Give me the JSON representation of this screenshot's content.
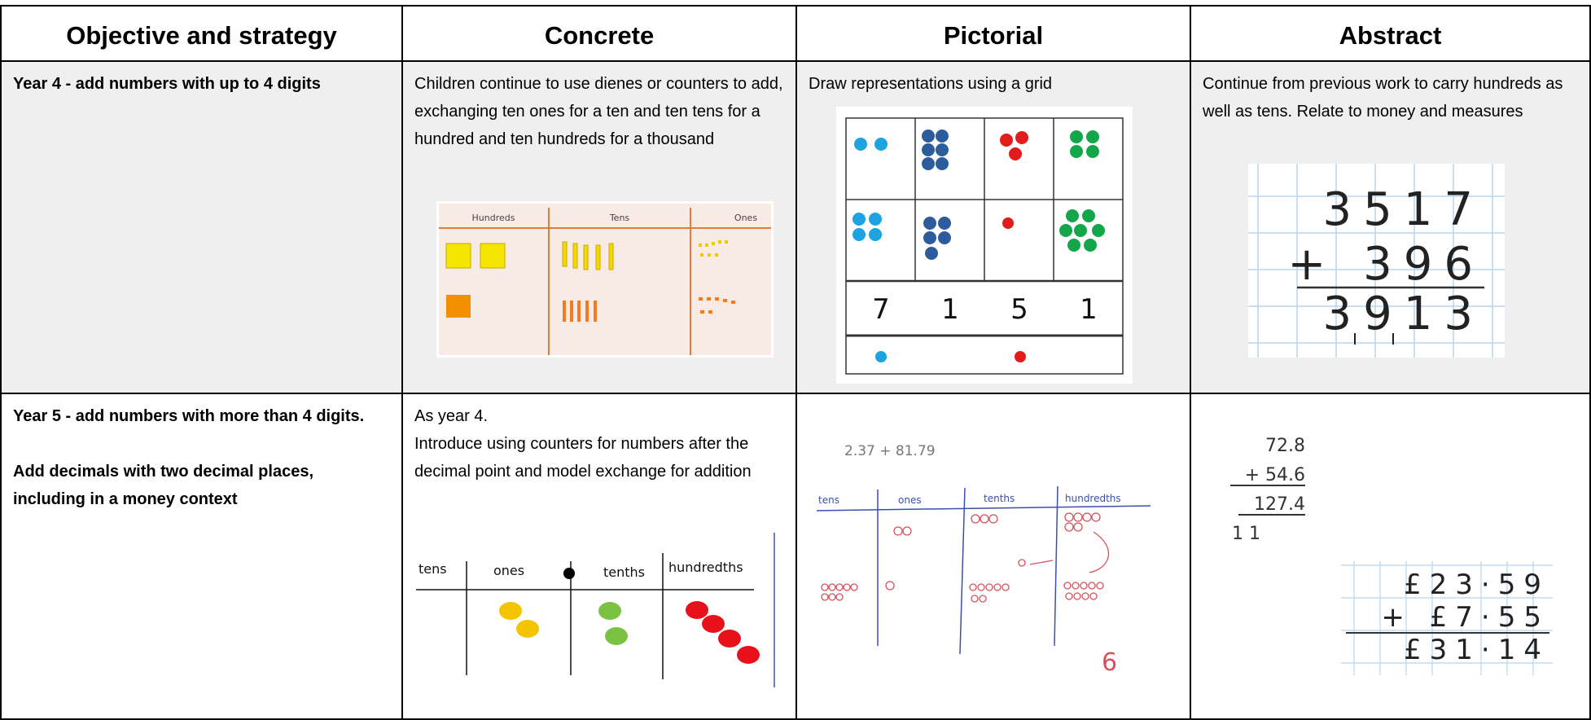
{
  "table": {
    "header": [
      "Objective and strategy",
      "Concrete",
      "Pictorial",
      "Abstract"
    ],
    "rows": [
      [
        {
          "paragraphs": [
            "Year 4 - add numbers with up to 4 digits"
          ]
        },
        {
          "paragraphs": [
            "Children continue to use dienes or counters to add, exchanging ten ones for a ten and ten tens for a hundred and ten hundreds for a thousand"
          ],
          "figure": {
            "columns": [
              "Hundreds",
              "Tens",
              "Ones"
            ]
          }
        },
        {
          "paragraphs": [
            "Draw representations using a grid"
          ],
          "figure": {
            "digits": [
              "7",
              "1",
              "5",
              "1"
            ]
          }
        },
        {
          "paragraphs": [
            "Continue from previous work to carry hundreds as well as tens. Relate to money and measures"
          ],
          "figure": {
            "lines": [
              "3517",
              "+ 396",
              "3913"
            ]
          }
        }
      ],
      [
        {
          "paragraphs": [
            "Year 5 - add numbers with more than 4 digits.",
            "Add decimals with two decimal places, including in a money context"
          ]
        },
        {
          "paragraphs": [
            "As year 4.",
            "Introduce using counters for numbers after the decimal point and model exchange for addition"
          ],
          "figure": {
            "columns": [
              "tens",
              "ones",
              "tenths",
              "hundredths"
            ]
          }
        },
        {
          "figure": {
            "sum": "2.37 + 81.79",
            "columns": [
              "tens",
              "ones",
              "tenths",
              "hundredths"
            ],
            "note": "6"
          }
        },
        {
          "figure": {
            "lines": [
              "72.8",
              "+ 54.6",
              "127.4",
              "1 1"
            ],
            "money": [
              "£23·59",
              "+ £7·55",
              "£31·14"
            ]
          }
        }
      ]
    ]
  }
}
